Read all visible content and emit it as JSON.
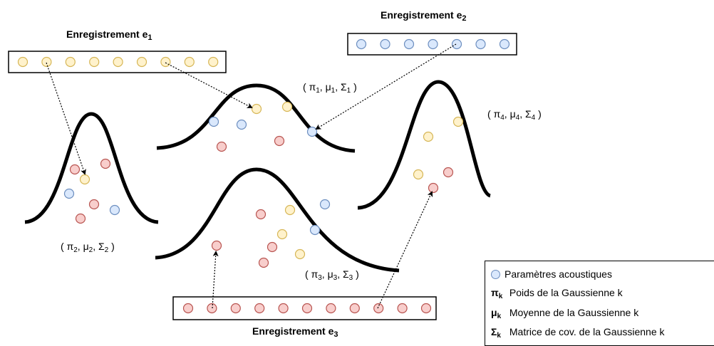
{
  "recordings": [
    {
      "id": "e1",
      "title": "Enregistrement e",
      "sub": "1"
    },
    {
      "id": "e2",
      "title": "Enregistrement e",
      "sub": "2"
    },
    {
      "id": "e3",
      "title": "Enregistrement e",
      "sub": "3"
    }
  ],
  "gaussians": [
    {
      "id": "g1",
      "pi": "π",
      "mu": "μ",
      "sigma": "Σ",
      "sub": "1"
    },
    {
      "id": "g2",
      "pi": "π",
      "mu": "μ",
      "sigma": "Σ",
      "sub": "2"
    },
    {
      "id": "g3",
      "pi": "π",
      "mu": "μ",
      "sigma": "Σ",
      "sub": "3"
    },
    {
      "id": "g4",
      "pi": "π",
      "mu": "μ",
      "sigma": "Σ",
      "sub": "4"
    }
  ],
  "legend": {
    "acoustic": "Paramètres acoustiques",
    "pi_sym": "π",
    "pi_sub": "k",
    "pi_text": "Poids de la Gaussienne k",
    "mu_sym": "μ",
    "mu_sub": "k",
    "mu_text": "Moyenne de la Gaussienne k",
    "sigma_sym": "Σ",
    "sigma_sub": "k",
    "sigma_text": "Matrice de cov. de la Gaussienne k"
  },
  "colors": {
    "yellow_fill": "#fff2cc",
    "yellow_stroke": "#d6b656",
    "blue_fill": "#dae8fc",
    "blue_stroke": "#6c8ebf",
    "red_fill": "#f8cecc",
    "red_stroke": "#b85450"
  }
}
